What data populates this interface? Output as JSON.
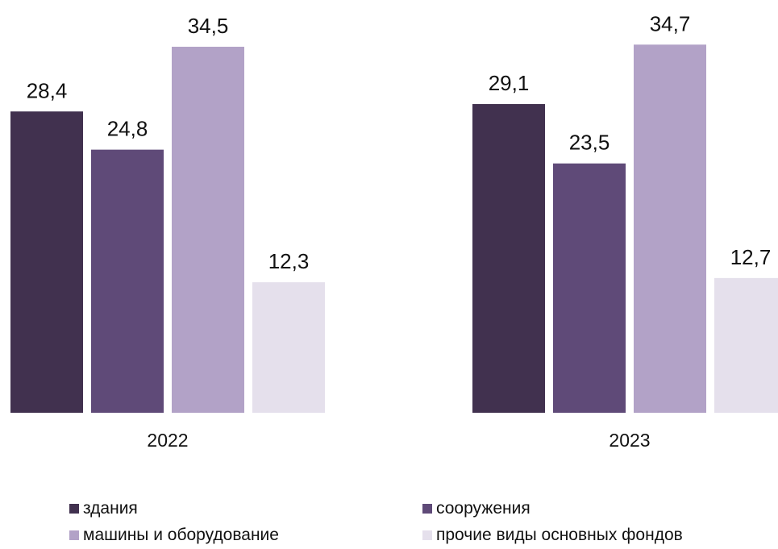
{
  "chart_data": {
    "type": "bar",
    "categories": [
      "2022",
      "2023"
    ],
    "series": [
      {
        "name": "здания",
        "values": [
          28.4,
          29.1
        ],
        "labels": [
          "28,4",
          "29,1"
        ],
        "color": "#41314f"
      },
      {
        "name": "сооружения",
        "values": [
          24.8,
          23.5
        ],
        "labels": [
          "24,8",
          "23,5"
        ],
        "color": "#5f4a78"
      },
      {
        "name": "машины и оборудование",
        "values": [
          34.5,
          34.7
        ],
        "labels": [
          "34,5",
          "34,7"
        ],
        "color": "#b2a2c7"
      },
      {
        "name": "прочие виды основных фондов",
        "values": [
          12.3,
          12.7
        ],
        "labels": [
          "12,3",
          "12,7"
        ],
        "color": "#e5e0ec"
      }
    ],
    "title": "",
    "xlabel": "",
    "ylabel": "",
    "ylim": [
      0,
      34.7
    ],
    "grid": false,
    "legend": "bottom"
  }
}
